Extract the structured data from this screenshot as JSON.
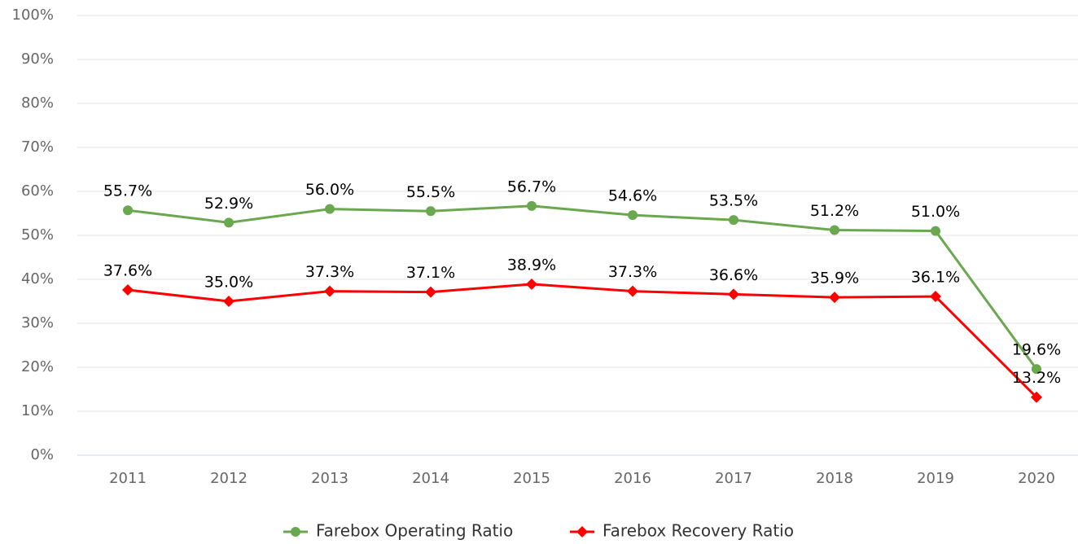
{
  "chart_data": {
    "type": "line",
    "categories": [
      "2011",
      "2012",
      "2013",
      "2014",
      "2015",
      "2016",
      "2017",
      "2018",
      "2019",
      "2020"
    ],
    "series": [
      {
        "name": "Farebox Operating Ratio",
        "color": "#6aa84f",
        "marker": "circle",
        "values": [
          55.7,
          52.9,
          56.0,
          55.5,
          56.7,
          54.6,
          53.5,
          51.2,
          51.0,
          19.6
        ],
        "value_labels": [
          "55.7%",
          "52.9%",
          "56.0%",
          "55.5%",
          "56.7%",
          "54.6%",
          "53.5%",
          "51.2%",
          "51.0%",
          "19.6%"
        ]
      },
      {
        "name": "Farebox Recovery Ratio",
        "color": "#ff0000",
        "marker": "diamond",
        "values": [
          37.6,
          35.0,
          37.3,
          37.1,
          38.9,
          37.3,
          36.6,
          35.9,
          36.1,
          13.2
        ],
        "value_labels": [
          "37.6%",
          "35.0%",
          "37.3%",
          "37.1%",
          "38.9%",
          "37.3%",
          "36.6%",
          "35.9%",
          "36.1%",
          "13.2%"
        ]
      }
    ],
    "ylim": [
      0,
      100
    ],
    "yticks": [
      {
        "value": 0,
        "label": "0%"
      },
      {
        "value": 10,
        "label": "10%"
      },
      {
        "value": 20,
        "label": "20%"
      },
      {
        "value": 30,
        "label": "30%"
      },
      {
        "value": 40,
        "label": "40%"
      },
      {
        "value": 50,
        "label": "50%"
      },
      {
        "value": 60,
        "label": "60%"
      },
      {
        "value": 70,
        "label": "70%"
      },
      {
        "value": 80,
        "label": "80%"
      },
      {
        "value": 90,
        "label": "90%"
      },
      {
        "value": 100,
        "label": "100%"
      }
    ],
    "grid": true,
    "legend": "bottom"
  }
}
